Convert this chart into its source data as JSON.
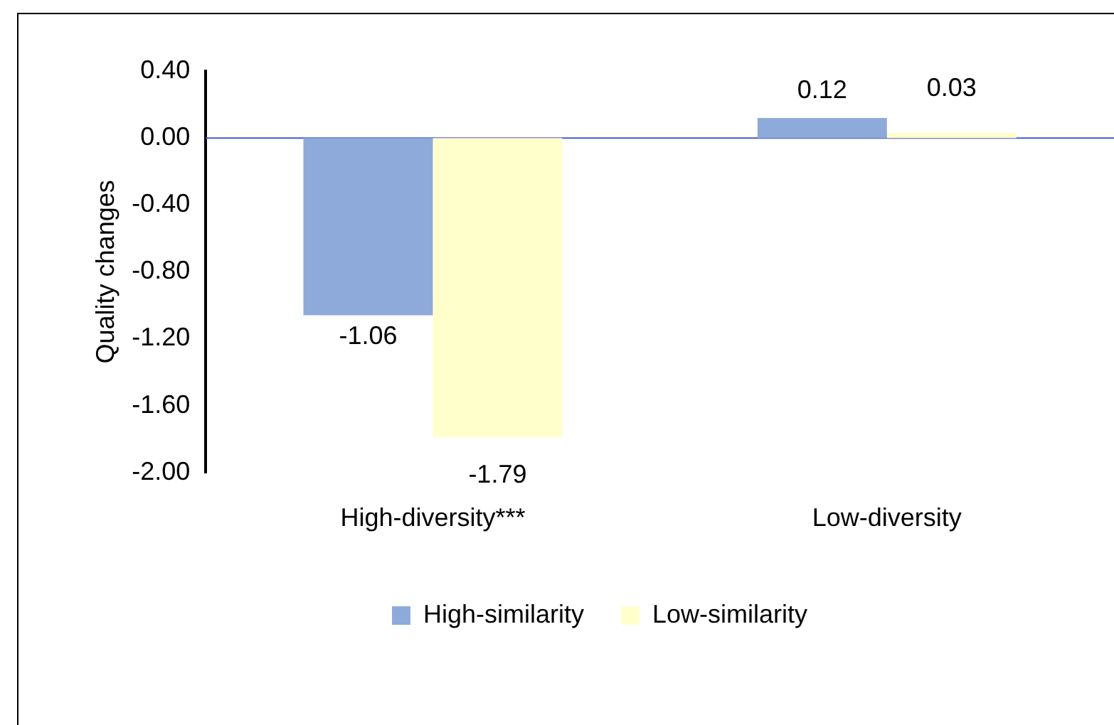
{
  "chart_data": {
    "type": "bar",
    "ylabel": "Quality changes",
    "categories": [
      "High-diversity***",
      "Low-diversity"
    ],
    "series": [
      {
        "name": "High-similarity",
        "color": "#8eaadb",
        "values": [
          -1.06,
          0.12
        ]
      },
      {
        "name": "Low-similarity",
        "color": "#ffffcc",
        "values": [
          -1.79,
          0.03
        ]
      }
    ],
    "ylim": [
      -2,
      0.4
    ],
    "yticks": [
      {
        "value": 0.4,
        "label": "0.40"
      },
      {
        "value": 0,
        "label": "0.00"
      },
      {
        "value": -0.4,
        "label": "-0.40"
      },
      {
        "value": -0.8,
        "label": "-0.80"
      },
      {
        "value": -1.2,
        "label": "-1.20"
      },
      {
        "value": -1.6,
        "label": "-1.60"
      },
      {
        "value": -2,
        "label": "-2.00"
      }
    ],
    "ref_lines": [
      {
        "axis": "y",
        "value": 0,
        "color": "#4a5ad0"
      }
    ],
    "grid": false,
    "legend": "bottom",
    "data_labels": true
  }
}
